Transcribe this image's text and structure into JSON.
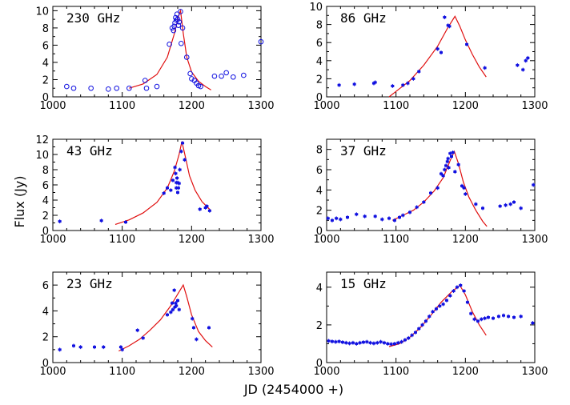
{
  "figure": {
    "ylabel": "Flux (Jy)",
    "xlabel": "JD (2454000 +)",
    "series_color": "#1010e0",
    "model_color": "#e01010"
  },
  "chart_data": [
    {
      "type": "scatter",
      "title": "230 GHz",
      "xlim": [
        1000,
        1300
      ],
      "ylim": [
        0,
        10.5
      ],
      "xticks": [
        1000,
        1100,
        1200,
        1300
      ],
      "yticks": [
        0,
        2,
        4,
        6,
        8,
        10
      ],
      "marker": "circle",
      "points": [
        [
          1020,
          1.2
        ],
        [
          1030,
          1.0
        ],
        [
          1055,
          1.0
        ],
        [
          1080,
          0.9
        ],
        [
          1092,
          1.0
        ],
        [
          1110,
          1.0
        ],
        [
          1133,
          1.9
        ],
        [
          1135,
          1.0
        ],
        [
          1150,
          1.2
        ],
        [
          1168,
          6.1
        ],
        [
          1172,
          8.0
        ],
        [
          1174,
          7.7
        ],
        [
          1175,
          8.2
        ],
        [
          1176,
          8.6
        ],
        [
          1177,
          9.2
        ],
        [
          1178,
          8.9
        ],
        [
          1179,
          9.6
        ],
        [
          1180,
          9.0
        ],
        [
          1181,
          8.3
        ],
        [
          1182,
          8.7
        ],
        [
          1184,
          9.9
        ],
        [
          1185,
          6.2
        ],
        [
          1187,
          8.0
        ],
        [
          1193,
          4.6
        ],
        [
          1198,
          2.7
        ],
        [
          1200,
          2.1
        ],
        [
          1204,
          1.9
        ],
        [
          1207,
          1.6
        ],
        [
          1210,
          1.3
        ],
        [
          1213,
          1.2
        ],
        [
          1233,
          2.4
        ],
        [
          1243,
          2.4
        ],
        [
          1250,
          2.8
        ],
        [
          1260,
          2.3
        ],
        [
          1275,
          2.5
        ],
        [
          1300,
          6.4
        ]
      ],
      "model": [
        [
          1110,
          1.0
        ],
        [
          1130,
          1.5
        ],
        [
          1150,
          2.6
        ],
        [
          1165,
          4.6
        ],
        [
          1175,
          7.3
        ],
        [
          1182,
          9.6
        ],
        [
          1184,
          10.0
        ],
        [
          1188,
          7.4
        ],
        [
          1193,
          4.6
        ],
        [
          1200,
          2.9
        ],
        [
          1210,
          1.8
        ],
        [
          1220,
          1.2
        ],
        [
          1228,
          0.8
        ]
      ]
    },
    {
      "type": "scatter",
      "title": "86 GHz",
      "xlim": [
        1000,
        1300
      ],
      "ylim": [
        0,
        10
      ],
      "xticks": [
        1000,
        1100,
        1200,
        1300
      ],
      "yticks": [
        0,
        2,
        4,
        6,
        8,
        10
      ],
      "marker": "errorbar",
      "points": [
        [
          1018,
          1.3
        ],
        [
          1040,
          1.4
        ],
        [
          1068,
          1.5
        ],
        [
          1070,
          1.6
        ],
        [
          1095,
          1.2
        ],
        [
          1110,
          1.3
        ],
        [
          1117,
          1.5
        ],
        [
          1125,
          2.0
        ],
        [
          1133,
          2.8
        ],
        [
          1160,
          5.3
        ],
        [
          1165,
          4.9
        ],
        [
          1170,
          8.8
        ],
        [
          1175,
          7.9
        ],
        [
          1177,
          7.8
        ],
        [
          1202,
          5.8
        ],
        [
          1228,
          3.2
        ],
        [
          1275,
          3.5
        ],
        [
          1283,
          3.0
        ],
        [
          1287,
          4.0
        ],
        [
          1290,
          4.3
        ]
      ],
      "model": [
        [
          1090,
          0.0
        ],
        [
          1100,
          0.6
        ],
        [
          1120,
          1.8
        ],
        [
          1140,
          3.5
        ],
        [
          1160,
          5.6
        ],
        [
          1175,
          7.7
        ],
        [
          1185,
          8.9
        ],
        [
          1192,
          7.8
        ],
        [
          1200,
          6.3
        ],
        [
          1210,
          4.7
        ],
        [
          1220,
          3.3
        ],
        [
          1230,
          2.2
        ]
      ]
    },
    {
      "type": "scatter",
      "title": "43 GHz",
      "xlim": [
        1000,
        1300
      ],
      "ylim": [
        0,
        12
      ],
      "xticks": [
        1000,
        1100,
        1200,
        1300
      ],
      "yticks": [
        0,
        2,
        4,
        6,
        8,
        10,
        12
      ],
      "marker": "errorbar",
      "points": [
        [
          1010,
          1.2
        ],
        [
          1070,
          1.3
        ],
        [
          1105,
          1.1
        ],
        [
          1160,
          4.9
        ],
        [
          1165,
          5.6
        ],
        [
          1170,
          5.3
        ],
        [
          1173,
          6.6
        ],
        [
          1176,
          8.3
        ],
        [
          1177,
          7.5
        ],
        [
          1178,
          6.3
        ],
        [
          1178,
          5.6
        ],
        [
          1179,
          6.9
        ],
        [
          1180,
          6.3
        ],
        [
          1180,
          5.0
        ],
        [
          1181,
          5.6
        ],
        [
          1182,
          6.2
        ],
        [
          1183,
          8.0
        ],
        [
          1185,
          10.4
        ],
        [
          1187,
          11.5
        ],
        [
          1190,
          9.3
        ],
        [
          1212,
          2.8
        ],
        [
          1220,
          3.0
        ],
        [
          1222,
          3.2
        ],
        [
          1226,
          2.6
        ]
      ],
      "model": [
        [
          1090,
          0.8
        ],
        [
          1110,
          1.4
        ],
        [
          1130,
          2.3
        ],
        [
          1150,
          3.7
        ],
        [
          1165,
          5.6
        ],
        [
          1175,
          7.8
        ],
        [
          1182,
          10.0
        ],
        [
          1186,
          11.7
        ],
        [
          1190,
          10.1
        ],
        [
          1197,
          7.2
        ],
        [
          1205,
          5.3
        ],
        [
          1215,
          3.8
        ],
        [
          1228,
          2.6
        ]
      ]
    },
    {
      "type": "scatter",
      "title": "37 GHz",
      "xlim": [
        1000,
        1300
      ],
      "ylim": [
        0,
        9
      ],
      "xticks": [
        1000,
        1100,
        1200,
        1300
      ],
      "yticks": [
        0,
        2,
        4,
        6,
        8
      ],
      "marker": "errorbar",
      "points": [
        [
          1002,
          1.2
        ],
        [
          1008,
          1.0
        ],
        [
          1014,
          1.2
        ],
        [
          1020,
          1.1
        ],
        [
          1030,
          1.3
        ],
        [
          1043,
          1.6
        ],
        [
          1055,
          1.4
        ],
        [
          1070,
          1.4
        ],
        [
          1080,
          1.1
        ],
        [
          1090,
          1.2
        ],
        [
          1098,
          1.0
        ],
        [
          1105,
          1.3
        ],
        [
          1110,
          1.5
        ],
        [
          1120,
          1.8
        ],
        [
          1130,
          2.3
        ],
        [
          1140,
          2.8
        ],
        [
          1150,
          3.7
        ],
        [
          1160,
          4.2
        ],
        [
          1165,
          5.6
        ],
        [
          1168,
          5.4
        ],
        [
          1170,
          6.0
        ],
        [
          1172,
          6.4
        ],
        [
          1174,
          6.8
        ],
        [
          1175,
          7.1
        ],
        [
          1176,
          6.2
        ],
        [
          1178,
          7.6
        ],
        [
          1180,
          7.3
        ],
        [
          1182,
          7.7
        ],
        [
          1185,
          5.8
        ],
        [
          1190,
          6.5
        ],
        [
          1195,
          4.4
        ],
        [
          1198,
          4.2
        ],
        [
          1200,
          3.6
        ],
        [
          1215,
          2.6
        ],
        [
          1225,
          2.2
        ],
        [
          1250,
          2.4
        ],
        [
          1258,
          2.5
        ],
        [
          1265,
          2.6
        ],
        [
          1270,
          2.8
        ],
        [
          1280,
          2.2
        ],
        [
          1298,
          4.5
        ]
      ],
      "model": [
        [
          1095,
          1.0
        ],
        [
          1110,
          1.5
        ],
        [
          1125,
          2.0
        ],
        [
          1140,
          2.8
        ],
        [
          1155,
          3.9
        ],
        [
          1168,
          5.2
        ],
        [
          1178,
          6.9
        ],
        [
          1184,
          7.8
        ],
        [
          1190,
          6.6
        ],
        [
          1197,
          4.8
        ],
        [
          1205,
          3.3
        ],
        [
          1215,
          2.0
        ],
        [
          1225,
          0.9
        ],
        [
          1231,
          0.4
        ]
      ]
    },
    {
      "type": "scatter",
      "title": "23 GHz",
      "xlim": [
        1000,
        1300
      ],
      "ylim": [
        0,
        7
      ],
      "xticks": [
        1000,
        1100,
        1200,
        1300
      ],
      "yticks": [
        0,
        2,
        4,
        6
      ],
      "marker": "errorbar",
      "points": [
        [
          1010,
          1.0
        ],
        [
          1030,
          1.3
        ],
        [
          1040,
          1.2
        ],
        [
          1060,
          1.2
        ],
        [
          1073,
          1.2
        ],
        [
          1098,
          1.2
        ],
        [
          1100,
          1.0
        ],
        [
          1122,
          2.5
        ],
        [
          1130,
          1.9
        ],
        [
          1165,
          3.7
        ],
        [
          1170,
          3.9
        ],
        [
          1172,
          4.6
        ],
        [
          1173,
          4.1
        ],
        [
          1175,
          5.6
        ],
        [
          1176,
          4.3
        ],
        [
          1177,
          4.6
        ],
        [
          1178,
          4.4
        ],
        [
          1180,
          4.8
        ],
        [
          1182,
          4.1
        ],
        [
          1201,
          3.4
        ],
        [
          1203,
          2.7
        ],
        [
          1207,
          1.8
        ],
        [
          1225,
          2.7
        ]
      ],
      "model": [
        [
          1095,
          0.9
        ],
        [
          1110,
          1.3
        ],
        [
          1125,
          1.8
        ],
        [
          1140,
          2.5
        ],
        [
          1155,
          3.3
        ],
        [
          1170,
          4.4
        ],
        [
          1180,
          5.3
        ],
        [
          1188,
          6.0
        ],
        [
          1193,
          5.1
        ],
        [
          1200,
          3.7
        ],
        [
          1210,
          2.4
        ],
        [
          1220,
          1.7
        ],
        [
          1230,
          1.2
        ]
      ]
    },
    {
      "type": "scatter",
      "title": "15 GHz",
      "xlim": [
        1000,
        1300
      ],
      "ylim": [
        0,
        4.8
      ],
      "xticks": [
        1000,
        1100,
        1200,
        1300
      ],
      "yticks": [
        0,
        2,
        4
      ],
      "marker": "errorbar",
      "points": [
        [
          1003,
          1.15
        ],
        [
          1008,
          1.12
        ],
        [
          1013,
          1.1
        ],
        [
          1018,
          1.12
        ],
        [
          1023,
          1.08
        ],
        [
          1028,
          1.05
        ],
        [
          1033,
          1.02
        ],
        [
          1038,
          1.05
        ],
        [
          1043,
          1.0
        ],
        [
          1048,
          1.05
        ],
        [
          1053,
          1.08
        ],
        [
          1058,
          1.1
        ],
        [
          1063,
          1.05
        ],
        [
          1068,
          1.02
        ],
        [
          1073,
          1.05
        ],
        [
          1078,
          1.1
        ],
        [
          1083,
          1.05
        ],
        [
          1088,
          1.0
        ],
        [
          1093,
          0.98
        ],
        [
          1098,
          1.0
        ],
        [
          1103,
          1.05
        ],
        [
          1108,
          1.1
        ],
        [
          1113,
          1.2
        ],
        [
          1118,
          1.3
        ],
        [
          1123,
          1.45
        ],
        [
          1128,
          1.6
        ],
        [
          1133,
          1.8
        ],
        [
          1138,
          2.0
        ],
        [
          1143,
          2.2
        ],
        [
          1148,
          2.45
        ],
        [
          1153,
          2.7
        ],
        [
          1158,
          2.85
        ],
        [
          1163,
          3.0
        ],
        [
          1168,
          3.1
        ],
        [
          1173,
          3.3
        ],
        [
          1178,
          3.55
        ],
        [
          1183,
          3.8
        ],
        [
          1188,
          4.0
        ],
        [
          1193,
          4.1
        ],
        [
          1198,
          3.8
        ],
        [
          1203,
          3.2
        ],
        [
          1208,
          2.6
        ],
        [
          1213,
          2.3
        ],
        [
          1218,
          2.2
        ],
        [
          1223,
          2.3
        ],
        [
          1228,
          2.35
        ],
        [
          1233,
          2.4
        ],
        [
          1240,
          2.35
        ],
        [
          1248,
          2.45
        ],
        [
          1255,
          2.5
        ],
        [
          1262,
          2.45
        ],
        [
          1270,
          2.4
        ],
        [
          1280,
          2.45
        ],
        [
          1297,
          2.1
        ]
      ],
      "model": [
        [
          1090,
          0.85
        ],
        [
          1105,
          1.0
        ],
        [
          1120,
          1.35
        ],
        [
          1135,
          1.85
        ],
        [
          1150,
          2.5
        ],
        [
          1165,
          3.2
        ],
        [
          1180,
          3.75
        ],
        [
          1192,
          4.1
        ],
        [
          1200,
          3.6
        ],
        [
          1210,
          2.7
        ],
        [
          1220,
          2.0
        ],
        [
          1230,
          1.45
        ]
      ]
    }
  ]
}
